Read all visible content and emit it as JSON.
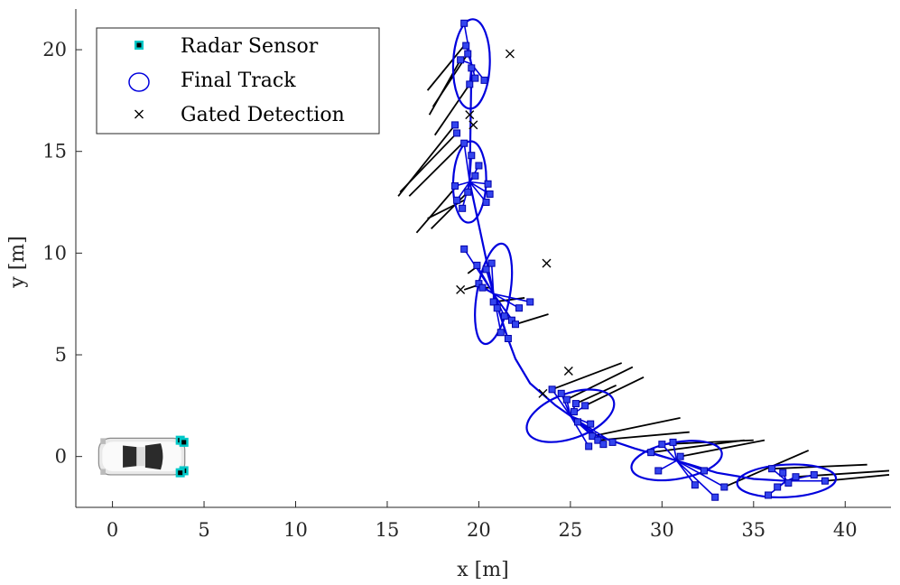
{
  "chart_data": {
    "type": "scatter",
    "title": "",
    "xlabel": "x [m]",
    "ylabel": "y [m]",
    "xlim": [
      -2,
      42.5
    ],
    "ylim": [
      -2.5,
      22
    ],
    "xticks": [
      "0",
      "5",
      "10",
      "15",
      "20",
      "25",
      "30",
      "35",
      "40"
    ],
    "yticks": [
      "0",
      "5",
      "10",
      "15",
      "20"
    ],
    "grid": false,
    "legend_position": "top-left",
    "colors": {
      "track": "#0000dd",
      "sensor_fill": "#00c8c8",
      "sensor_core": "#000000",
      "detection": "#000000",
      "line": "#000000"
    },
    "legend": [
      {
        "label": "Radar Sensor",
        "marker": "filled-square"
      },
      {
        "label": "Final Track",
        "marker": "ellipse"
      },
      {
        "label": "Gated Detection",
        "marker": "x"
      }
    ],
    "sensors": {
      "x": [
        3.7,
        3.9,
        3.9,
        3.7
      ],
      "y": [
        0.8,
        0.7,
        -0.7,
        -0.8
      ]
    },
    "ego_vehicle": {
      "x_center": 1.6,
      "y_center": 0,
      "length": 4.7,
      "width": 1.8
    },
    "tracks": [
      {
        "x": 19.6,
        "y": 19.3,
        "rx": 1.0,
        "ry": 2.2,
        "angle": -88
      },
      {
        "x": 19.5,
        "y": 13.5,
        "rx": 0.9,
        "ry": 2.0,
        "angle": -88
      },
      {
        "x": 20.8,
        "y": 8.0,
        "rx": 0.9,
        "ry": 2.5,
        "angle": -80
      },
      {
        "x": 25.0,
        "y": 2.0,
        "rx": 2.5,
        "ry": 1.1,
        "angle": -20
      },
      {
        "x": 30.8,
        "y": -0.2,
        "rx": 2.5,
        "ry": 0.9,
        "angle": -10
      },
      {
        "x": 36.8,
        "y": -1.2,
        "rx": 2.7,
        "ry": 0.8,
        "angle": -3
      }
    ],
    "track_path": {
      "x": [
        19.6,
        19.5,
        20.8,
        21.5,
        22.0,
        22.8,
        24.2,
        25.0,
        26.5,
        28.5,
        30.8,
        33.0,
        35.0,
        36.8
      ],
      "y": [
        19.3,
        13.5,
        8.0,
        6.0,
        4.8,
        3.6,
        2.5,
        2.0,
        1.0,
        0.4,
        -0.2,
        -0.8,
        -1.1,
        -1.2
      ]
    },
    "detections": {
      "x": [
        19.2,
        19.3,
        19.0,
        19.5,
        19.6,
        19.8,
        19.4,
        20.3,
        18.7,
        18.8,
        19.2,
        19.6,
        19.8,
        20.5,
        20.4,
        18.7,
        18.8,
        19.1,
        19.4,
        20.0,
        20.6,
        19.2,
        19.9,
        20.4,
        20.0,
        20.2,
        20.8,
        21.4,
        21.8,
        21.2,
        21.6,
        22.0,
        22.2,
        21.0,
        20.7,
        22.8,
        24.0,
        24.8,
        25.3,
        25.8,
        25.4,
        26.1,
        26.2,
        26.5,
        26.8,
        27.3,
        26.0,
        25.2,
        24.5,
        29.4,
        30.0,
        30.6,
        31.0,
        32.3,
        33.4,
        32.9,
        31.8,
        29.8,
        36.0,
        36.6,
        37.3,
        38.3,
        38.9,
        36.3,
        35.8,
        36.9
      ],
      "y": [
        21.3,
        20.2,
        19.5,
        18.3,
        19.1,
        18.6,
        19.8,
        18.5,
        16.3,
        15.9,
        15.4,
        14.8,
        13.8,
        13.4,
        12.5,
        13.3,
        12.6,
        12.2,
        13.0,
        14.3,
        12.9,
        10.2,
        9.4,
        9.2,
        8.5,
        8.3,
        7.6,
        6.9,
        6.7,
        6.1,
        5.8,
        6.5,
        7.3,
        7.3,
        9.5,
        7.6,
        3.3,
        2.8,
        2.6,
        2.5,
        1.7,
        1.6,
        1.0,
        0.8,
        0.6,
        0.7,
        0.5,
        2.2,
        3.1,
        0.2,
        0.6,
        0.7,
        0.0,
        -0.7,
        -1.5,
        -2.0,
        -1.4,
        -0.7,
        -0.6,
        -0.8,
        -1.0,
        -0.9,
        -1.2,
        -1.5,
        -1.9,
        -1.3
      ]
    },
    "gated_detections": {
      "x": [
        21.7,
        19.7,
        19.0,
        23.7,
        23.5,
        24.9,
        19.5
      ],
      "y": [
        19.8,
        16.3,
        8.2,
        9.5,
        3.1,
        4.2,
        16.8
      ]
    },
    "velocity_lines": {
      "start": {
        "x": [
          19.2,
          19.0,
          19.5,
          19.4,
          18.7,
          18.8,
          19.1,
          19.2,
          19.4,
          18.8,
          20.0,
          20.2,
          20.6,
          20.8,
          22.0,
          24.0,
          24.8,
          25.3,
          25.8,
          26.2,
          26.5,
          29.4,
          30.0,
          31.0,
          33.4,
          36.0,
          37.3,
          38.9
        ],
        "y": [
          20.2,
          19.5,
          18.3,
          19.8,
          16.3,
          15.9,
          15.4,
          12.6,
          13.0,
          13.3,
          9.4,
          8.5,
          8.3,
          7.6,
          6.5,
          3.3,
          2.8,
          2.6,
          2.5,
          1.0,
          0.8,
          0.2,
          0.6,
          0.0,
          -1.5,
          -0.6,
          -1.0,
          -1.2
        ]
      },
      "end": {
        "x": [
          17.2,
          17.3,
          17.6,
          17.5,
          15.6,
          15.7,
          16.2,
          17.2,
          17.4,
          16.6,
          19.4,
          19.2,
          20.2,
          22.5,
          23.8,
          27.8,
          28.4,
          27.5,
          29.0,
          31.0,
          31.5,
          34.5,
          35.0,
          35.6,
          38.0,
          41.2,
          42.4,
          42.4
        ],
        "y": [
          18.0,
          16.8,
          15.8,
          17.2,
          12.8,
          13.0,
          12.8,
          11.7,
          11.2,
          11.0,
          9.0,
          8.2,
          8.3,
          7.8,
          7.0,
          4.6,
          4.4,
          3.5,
          3.9,
          1.9,
          1.2,
          0.8,
          0.8,
          0.8,
          0.3,
          -0.4,
          -0.7,
          -0.9
        ]
      }
    }
  }
}
